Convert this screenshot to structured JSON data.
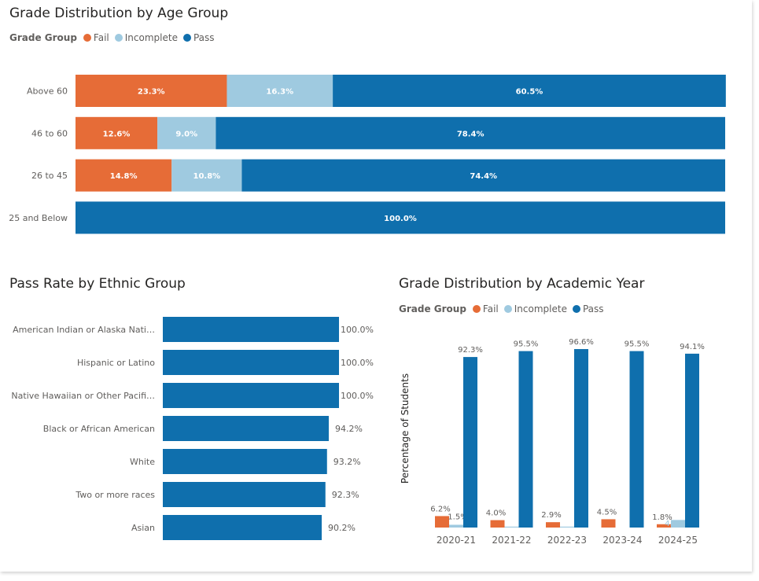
{
  "colors": {
    "fail": "#e66c37",
    "incomplete": "#9fcae0",
    "pass": "#0f6fad",
    "label_dark": "#605e5c",
    "label_light": "#ffffff"
  },
  "legend": {
    "title": "Grade Group",
    "items": [
      {
        "key": "fail",
        "label": "Fail"
      },
      {
        "key": "incomplete",
        "label": "Incomplete"
      },
      {
        "key": "pass",
        "label": "Pass"
      }
    ]
  },
  "chart_data": [
    {
      "id": "age",
      "type": "bar",
      "orientation": "horizontal",
      "stacked": "100%",
      "title": "Grade Distribution by Age Group",
      "legend_title": "Grade Group",
      "legend_position": "top-left",
      "categories": [
        "Above 60",
        "46 to 60",
        "26 to 45",
        "25 and Below"
      ],
      "series": [
        {
          "name": "Fail",
          "key": "fail",
          "values": [
            23.3,
            12.6,
            14.8,
            0
          ],
          "labels": [
            "23.3%",
            "12.6%",
            "14.8%",
            ""
          ]
        },
        {
          "name": "Incomplete",
          "key": "incomplete",
          "values": [
            16.3,
            9.0,
            10.8,
            0
          ],
          "labels": [
            "16.3%",
            "9.0%",
            "10.8%",
            ""
          ]
        },
        {
          "name": "Pass",
          "key": "pass",
          "values": [
            60.5,
            78.4,
            74.4,
            100.0
          ],
          "labels": [
            "60.5%",
            "78.4%",
            "74.4%",
            "100.0%"
          ]
        }
      ],
      "xlim": [
        0,
        100
      ],
      "grid": false
    },
    {
      "id": "ethnic",
      "type": "bar",
      "orientation": "horizontal",
      "title": "Pass Rate by Ethnic Group",
      "categories": [
        "American Indian or Alaska Nati…",
        "Hispanic or Latino",
        "Native Hawaiian or Other Pacifi…",
        "Black or African American",
        "White",
        "Two or more races",
        "Asian"
      ],
      "values": [
        100.0,
        100.0,
        100.0,
        94.2,
        93.2,
        92.3,
        90.2
      ],
      "labels": [
        "100.0%",
        "100.0%",
        "100.0%",
        "94.2%",
        "93.2%",
        "92.3%",
        "90.2%"
      ],
      "xlim": [
        0,
        100
      ],
      "grid": false
    },
    {
      "id": "year",
      "type": "bar",
      "orientation": "vertical",
      "grouped": true,
      "title": "Grade Distribution by Academic Year",
      "legend_title": "Grade Group",
      "legend_position": "top-left",
      "ylabel": "Percentage of Students",
      "categories": [
        "2020-21",
        "2021-22",
        "2022-23",
        "2023-24",
        "2024-25"
      ],
      "series": [
        {
          "name": "Fail",
          "key": "fail",
          "values": [
            6.2,
            4.0,
            2.9,
            4.5,
            1.8
          ],
          "labels": [
            "6.2%",
            "4.0%",
            "2.9%",
            "4.5%",
            "1.8%"
          ]
        },
        {
          "name": "Incomplete",
          "key": "incomplete",
          "values": [
            1.5,
            0.5,
            0.5,
            0,
            4.1
          ],
          "labels": [
            "1.5%",
            "",
            "",
            "",
            "4.1%"
          ]
        },
        {
          "name": "Pass",
          "key": "pass",
          "values": [
            92.3,
            95.5,
            96.6,
            95.5,
            94.1
          ],
          "labels": [
            "92.3%",
            "95.5%",
            "96.6%",
            "95.5%",
            "94.1%"
          ]
        }
      ],
      "ylim": [
        0,
        100
      ],
      "grid": false
    }
  ]
}
